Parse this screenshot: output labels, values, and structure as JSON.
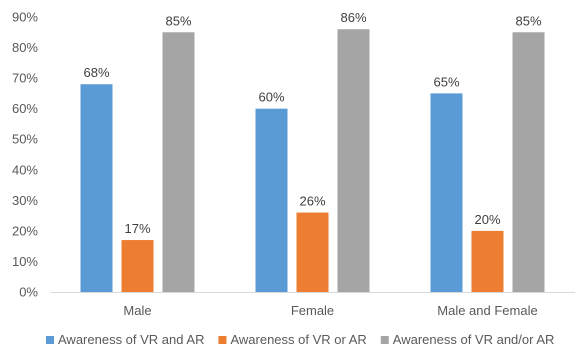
{
  "chart_data": {
    "type": "bar",
    "categories": [
      "Male",
      "Female",
      "Male and Female"
    ],
    "series": [
      {
        "name": "Awareness of VR and AR",
        "values": [
          68,
          60,
          65
        ],
        "labels": [
          "68%",
          "60%",
          "65%"
        ],
        "color": "#5B9BD5"
      },
      {
        "name": "Awareness of VR or AR",
        "values": [
          17,
          26,
          20
        ],
        "labels": [
          "17%",
          "26%",
          "20%"
        ],
        "color": "#ED7D31"
      },
      {
        "name": "Awareness of VR and/or AR",
        "values": [
          85,
          86,
          85
        ],
        "labels": [
          "85%",
          "86%",
          "85%"
        ],
        "color": "#A5A5A5"
      }
    ],
    "ylim": [
      0,
      90
    ],
    "yticks": [
      0,
      10,
      20,
      30,
      40,
      50,
      60,
      70,
      80,
      90
    ],
    "ytick_labels": [
      "0%",
      "10%",
      "20%",
      "30%",
      "40%",
      "50%",
      "60%",
      "70%",
      "80%",
      "90%"
    ],
    "grid": false,
    "legend_position": "bottom"
  }
}
